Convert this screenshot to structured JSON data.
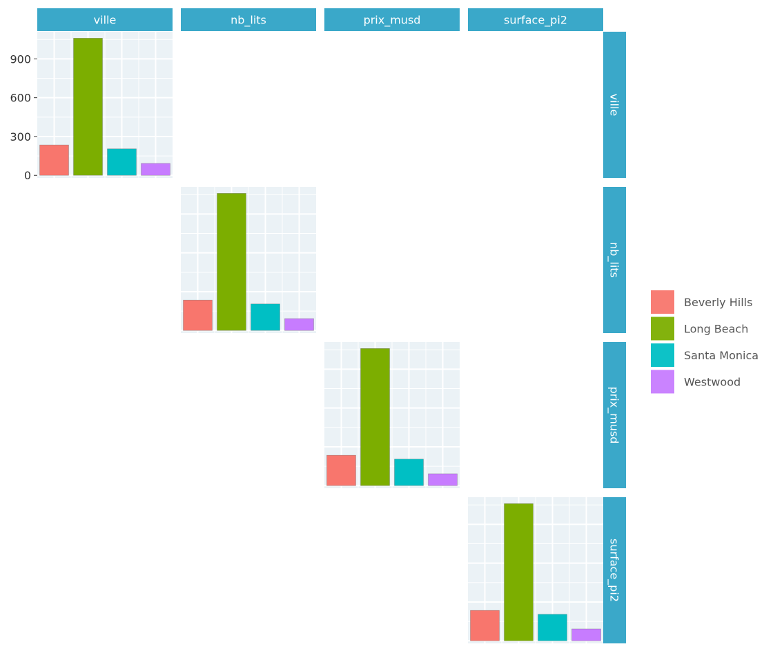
{
  "chart_data": {
    "type": "bar",
    "layout": "pairs-matrix-diagonal",
    "variables": [
      "ville",
      "nb_lits",
      "prix_musd",
      "surface_pi2"
    ],
    "categories": [
      "Beverly Hills",
      "Long Beach",
      "Santa Monica",
      "Westwood"
    ],
    "colors": [
      "#F8766D",
      "#7CAE00",
      "#00BFC4",
      "#C77CFF"
    ],
    "strip_color": "#3AA8C9",
    "panel_background": "#EBF2F6",
    "panels": [
      {
        "variable": "ville",
        "values": [
          235,
          1060,
          205,
          92
        ],
        "ylim": [
          -20,
          1110
        ],
        "yticks": [
          0,
          300,
          600,
          900
        ],
        "show_y_axis": true
      },
      {
        "variable": "nb_lits",
        "values": [
          235,
          1060,
          205,
          92
        ],
        "ylim": [
          -20,
          1110
        ],
        "yticks": [],
        "show_y_axis": false
      },
      {
        "variable": "prix_musd",
        "values": [
          235,
          1060,
          205,
          92
        ],
        "ylim": [
          -20,
          1110
        ],
        "yticks": [],
        "show_y_axis": false
      },
      {
        "variable": "surface_pi2",
        "values": [
          235,
          1060,
          205,
          92
        ],
        "ylim": [
          -20,
          1110
        ],
        "yticks": [],
        "show_y_axis": false
      }
    ],
    "grid": true,
    "legend": {
      "position": "right",
      "entries": [
        "Beverly Hills",
        "Long Beach",
        "Santa Monica",
        "Westwood"
      ]
    }
  }
}
